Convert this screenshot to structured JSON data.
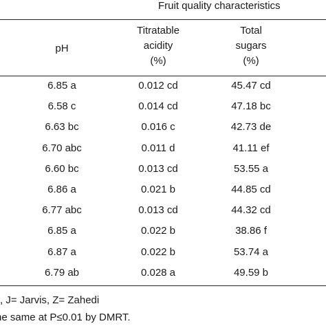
{
  "table": {
    "group_header": "Fruit quality characteristics",
    "columns": {
      "ph": [
        "pH"
      ],
      "titratable_acidity": [
        "Titratable",
        "acidity",
        "(%)"
      ],
      "total_sugars": [
        "Total",
        "sugars",
        "(%)"
      ]
    },
    "rows": [
      {
        "ph": "6.85 a",
        "ta": "0.012 cd",
        "ts": "45.47 cd"
      },
      {
        "ph": "6.58 c",
        "ta": "0.014 cd",
        "ts": "47.18 bc"
      },
      {
        "ph": "6.63 bc",
        "ta": "0.016 c",
        "ts": "42.73 de"
      },
      {
        "ph": "6.70 abc",
        "ta": "0.011 d",
        "ts": "41.11 ef"
      },
      {
        "ph": "6.60 bc",
        "ta": "0.013 cd",
        "ts": "53.55 a"
      },
      {
        "ph": "6.86 a",
        "ta": "0.021 b",
        "ts": "44.85 cd"
      },
      {
        "ph": "6.77 abc",
        "ta": "0.013 cd",
        "ts": "44.32 cd"
      },
      {
        "ph": "6.85 a",
        "ta": "0.022 b",
        "ts": "38.86 f"
      },
      {
        "ph": "6.87 a",
        "ta": "0.022 b",
        "ts": "53.74 a"
      },
      {
        "ph": "6.79 ab",
        "ta": "0.028 a",
        "ts": "49.59 b"
      }
    ]
  },
  "footnotes": {
    "line1": ", J= Jarvis, Z= Zahedi",
    "line2": "he same at P≤0.01 by DMRT."
  }
}
